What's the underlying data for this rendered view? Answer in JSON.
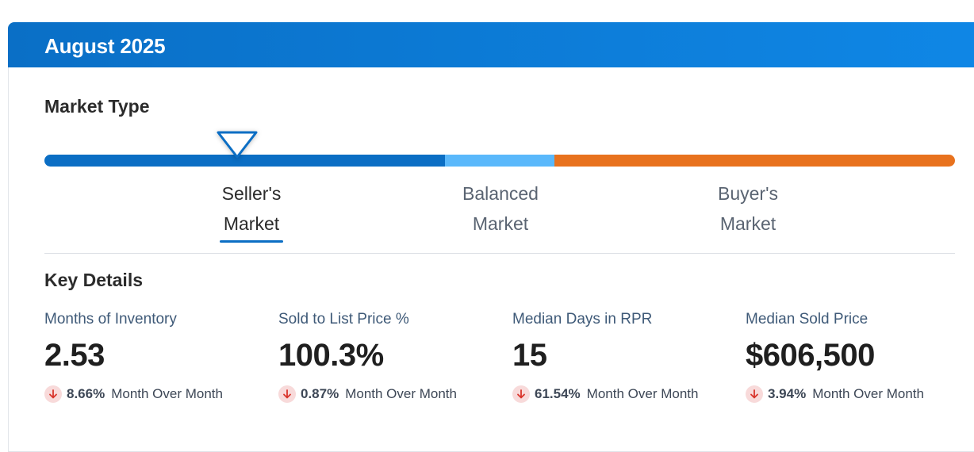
{
  "header": {
    "title": "August 2025"
  },
  "market_type": {
    "heading": "Market Type",
    "selected": "seller",
    "labels": {
      "seller": {
        "line1": "Seller's",
        "line2": "Market"
      },
      "balanced": {
        "line1": "Balanced",
        "line2": "Market"
      },
      "buyer": {
        "line1": "Buyer's",
        "line2": "Market"
      }
    },
    "colors": {
      "seller": "#0b6ec4",
      "balanced": "#5ab8fb",
      "buyer": "#e8721e"
    }
  },
  "key_details": {
    "heading": "Key Details",
    "items": [
      {
        "label": "Months of Inventory",
        "value": "2.53",
        "change": "8.66%",
        "change_label": "Month Over Month",
        "direction": "down"
      },
      {
        "label": "Sold to List Price %",
        "value": "100.3%",
        "change": "0.87%",
        "change_label": "Month Over Month",
        "direction": "down"
      },
      {
        "label": "Median Days in RPR",
        "value": "15",
        "change": "61.54%",
        "change_label": "Month Over Month",
        "direction": "down"
      },
      {
        "label": "Median Sold Price",
        "value": "$606,500",
        "change": "3.94%",
        "change_label": "Month Over Month",
        "direction": "down"
      }
    ]
  },
  "colors": {
    "down_arrow": "#d9342b",
    "down_badge_bg": "#f8dada",
    "header_bg": "#0a6fc6"
  }
}
